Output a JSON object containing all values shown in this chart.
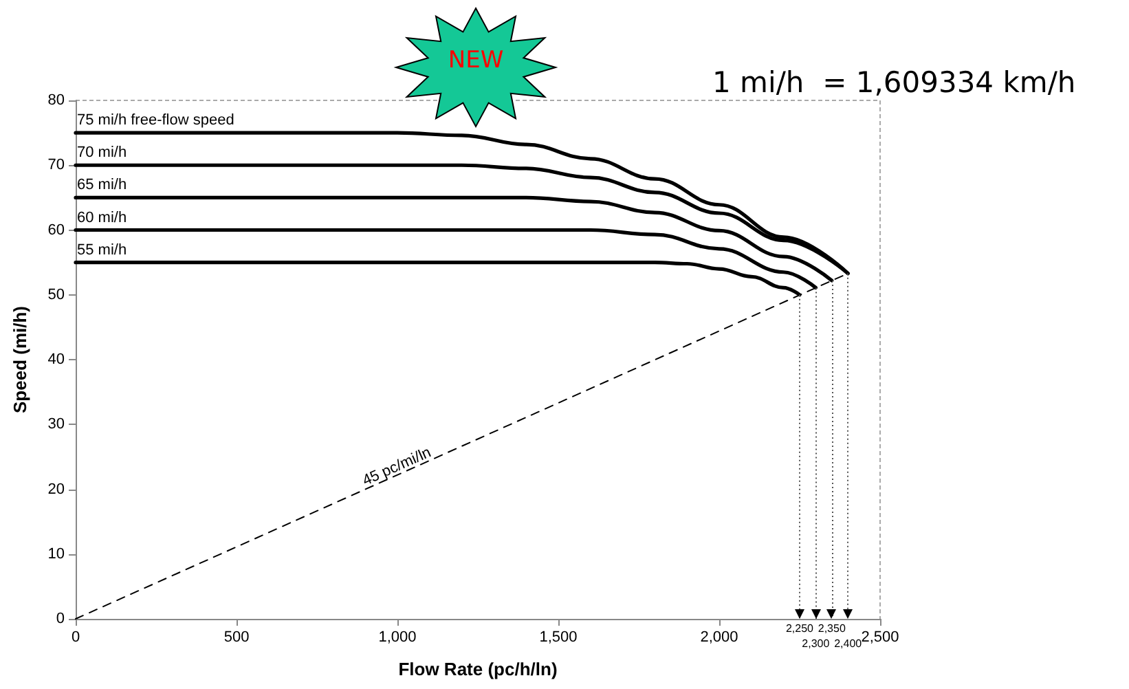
{
  "chart_data": {
    "type": "line",
    "xlabel": "Flow Rate (pc/h/ln)",
    "ylabel": "Speed (mi/h)",
    "annotations": [
      "NEW",
      "1 mi/h  = 1,609334 km/h"
    ],
    "xlim": [
      0,
      2500
    ],
    "xticks": [
      0,
      500,
      {
        "value": 1000,
        "label": "1,000"
      },
      {
        "value": 1500,
        "label": "1,500"
      },
      {
        "value": 2000,
        "label": "2,000"
      },
      {
        "value": 2500,
        "label": "2,500"
      }
    ],
    "ylim": [
      0,
      80
    ],
    "yticks": [
      0,
      10,
      20,
      30,
      40,
      50,
      60,
      70,
      80
    ],
    "grid": false,
    "legend": false,
    "marker": "none",
    "series": [
      {
        "name": "75 mi/h free-flow speed",
        "color": "#000000",
        "line_style": "solid",
        "x": [
          0,
          1000,
          1200,
          1400,
          1600,
          1800,
          2000,
          2200,
          2400
        ],
        "values": [
          75,
          75,
          74.6,
          73.2,
          71,
          67.9,
          63.9,
          58.9,
          53.3
        ]
      },
      {
        "name": "70 mi/h",
        "color": "#000000",
        "line_style": "solid",
        "x": [
          0,
          1200,
          1400,
          1600,
          1800,
          2000,
          2200,
          2400
        ],
        "values": [
          70,
          70,
          69.5,
          68.1,
          65.8,
          62.6,
          58.4,
          53.3
        ]
      },
      {
        "name": "65 mi/h",
        "color": "#000000",
        "line_style": "solid",
        "x": [
          0,
          1400,
          1600,
          1800,
          2000,
          2200,
          2350
        ],
        "values": [
          65,
          65,
          64.4,
          62.7,
          59.9,
          55.9,
          52.2
        ]
      },
      {
        "name": "60 mi/h",
        "color": "#000000",
        "line_style": "solid",
        "x": [
          0,
          1600,
          1800,
          2000,
          2200,
          2300
        ],
        "values": [
          60,
          60,
          59.3,
          57.1,
          53.5,
          51.1
        ]
      },
      {
        "name": "55 mi/h",
        "color": "#000000",
        "line_style": "solid",
        "x": [
          0,
          1800,
          1900,
          2000,
          2100,
          2200,
          2250
        ],
        "values": [
          55,
          55,
          54.8,
          54,
          52.8,
          51.1,
          50
        ]
      },
      {
        "name": "45 pc/mi/ln",
        "color": "#000000",
        "line_style": "dashed",
        "x": [
          0,
          2400
        ],
        "values": [
          0,
          53.3
        ]
      }
    ],
    "ref_lines": [
      {
        "axis": "x",
        "value": 2250,
        "label": "2,250",
        "color": "#555555",
        "line_style": "dotted"
      },
      {
        "axis": "x",
        "value": 2300,
        "label": "2,300",
        "color": "#555555",
        "line_style": "dotted"
      },
      {
        "axis": "x",
        "value": 2350,
        "label": "2,350",
        "color": "#555555",
        "line_style": "dotted"
      },
      {
        "axis": "x",
        "value": 2400,
        "label": "2,400",
        "color": "#555555",
        "line_style": "dotted"
      }
    ]
  }
}
